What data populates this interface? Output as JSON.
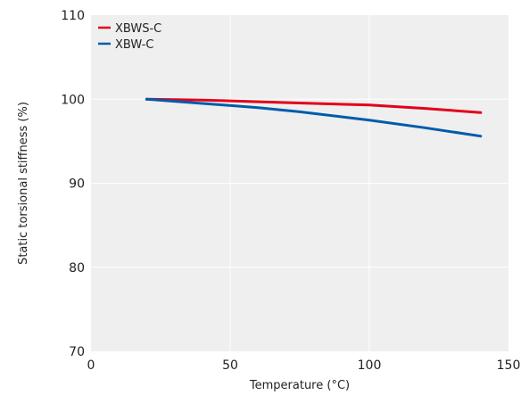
{
  "chart_data": {
    "type": "line",
    "xlabel": "Temperature (°C)",
    "ylabel": "Static torsional stiffness (%)",
    "xlim": [
      0,
      150
    ],
    "ylim": [
      70,
      110
    ],
    "xticks": [
      0,
      50,
      100,
      150
    ],
    "yticks": [
      70,
      80,
      90,
      100,
      110
    ],
    "grid": true,
    "legend_position": "top-left",
    "series": [
      {
        "name": "XBWS-C",
        "color": "#e3001b",
        "x": [
          20,
          40,
          60,
          80,
          100,
          120,
          140
        ],
        "y": [
          100,
          99.9,
          99.7,
          99.5,
          99.3,
          98.9,
          98.4
        ]
      },
      {
        "name": "XBW-C",
        "color": "#005bac",
        "x": [
          20,
          40,
          60,
          75,
          90,
          100,
          120,
          140
        ],
        "y": [
          100,
          99.5,
          99.0,
          98.5,
          97.9,
          97.5,
          96.6,
          95.6
        ]
      }
    ]
  }
}
